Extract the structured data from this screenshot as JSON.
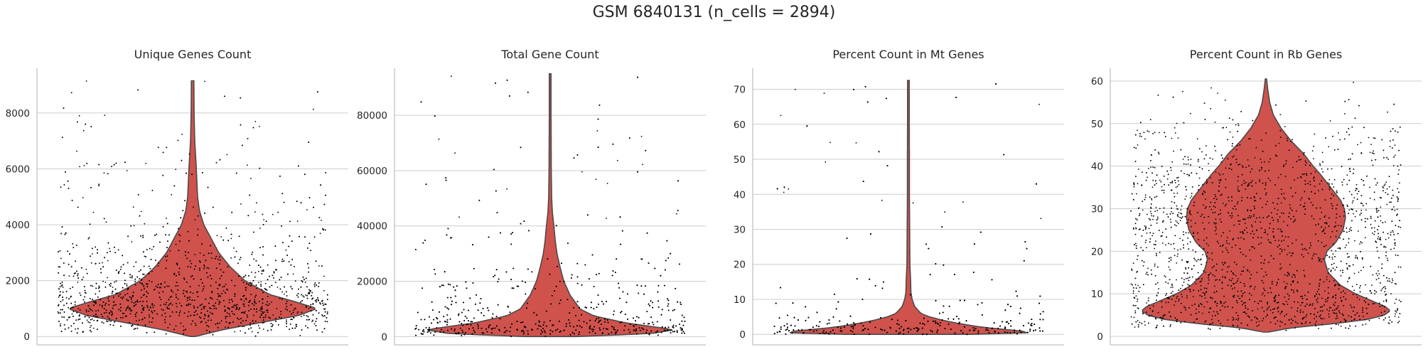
{
  "figure": {
    "title": "GSM 6840131 (n_cells = 2894)"
  },
  "chart_data": [
    {
      "type": "violin",
      "title": "Unique Genes Count",
      "xlabel": "",
      "ylabel": "",
      "ylim": [
        -300,
        9600
      ],
      "yticks": [
        0,
        2000,
        4000,
        6000,
        8000
      ],
      "grid": true,
      "color": "#d0524d",
      "data_max": 9150,
      "n_points": 2894,
      "density_profile": [
        [
          0,
          0.02
        ],
        [
          250,
          0.25
        ],
        [
          500,
          0.55
        ],
        [
          750,
          0.85
        ],
        [
          1000,
          1.0
        ],
        [
          1250,
          0.82
        ],
        [
          1500,
          0.62
        ],
        [
          2000,
          0.42
        ],
        [
          2500,
          0.3
        ],
        [
          3000,
          0.21
        ],
        [
          3500,
          0.15
        ],
        [
          4000,
          0.09
        ],
        [
          4500,
          0.055
        ],
        [
          5000,
          0.04
        ],
        [
          6000,
          0.03
        ],
        [
          7000,
          0.017
        ],
        [
          8000,
          0.012
        ],
        [
          9150,
          0.01
        ]
      ]
    },
    {
      "type": "violin",
      "title": "Total Gene Count",
      "xlabel": "",
      "ylabel": "",
      "ylim": [
        -3000,
        97000
      ],
      "yticks": [
        0,
        20000,
        40000,
        60000,
        80000
      ],
      "grid": true,
      "color": "#d0524d",
      "data_max": 95000,
      "n_points": 2894,
      "density_profile": [
        [
          0,
          0.2
        ],
        [
          1000,
          0.8
        ],
        [
          2500,
          1.0
        ],
        [
          5000,
          0.6
        ],
        [
          7500,
          0.35
        ],
        [
          10000,
          0.24
        ],
        [
          15000,
          0.16
        ],
        [
          20000,
          0.11
        ],
        [
          25000,
          0.08
        ],
        [
          30000,
          0.055
        ],
        [
          35000,
          0.04
        ],
        [
          40000,
          0.03
        ],
        [
          45000,
          0.018
        ],
        [
          50000,
          0.012
        ],
        [
          60000,
          0.009
        ],
        [
          70000,
          0.008
        ],
        [
          80000,
          0.007
        ],
        [
          95000,
          0.007
        ]
      ]
    },
    {
      "type": "violin",
      "title": "Percent Count in Mt Genes",
      "xlabel": "",
      "ylabel": "",
      "ylim": [
        -3,
        76
      ],
      "yticks": [
        0,
        10,
        20,
        30,
        40,
        50,
        60,
        70
      ],
      "grid": true,
      "color": "#d0524d",
      "data_max": 72.5,
      "n_points": 2894,
      "density_profile": [
        [
          0,
          0.5
        ],
        [
          0.5,
          1.0
        ],
        [
          1,
          0.9
        ],
        [
          2,
          0.6
        ],
        [
          3,
          0.42
        ],
        [
          4,
          0.28
        ],
        [
          5,
          0.17
        ],
        [
          6,
          0.1
        ],
        [
          8,
          0.05
        ],
        [
          10,
          0.03
        ],
        [
          12,
          0.02
        ],
        [
          15,
          0.018
        ],
        [
          20,
          0.012
        ],
        [
          30,
          0.01
        ],
        [
          40,
          0.008
        ],
        [
          50,
          0.008
        ],
        [
          60,
          0.007
        ],
        [
          72.5,
          0.007
        ]
      ]
    },
    {
      "type": "violin",
      "title": "Percent Count in Rb Genes",
      "xlabel": "",
      "ylabel": "",
      "ylim": [
        -2,
        63
      ],
      "yticks": [
        0,
        10,
        20,
        30,
        40,
        50,
        60
      ],
      "grid": true,
      "color": "#d0524d",
      "data_max": 60.5,
      "n_points": 2894,
      "density_profile": [
        [
          1,
          0.02
        ],
        [
          2,
          0.2
        ],
        [
          3,
          0.55
        ],
        [
          4,
          0.82
        ],
        [
          5,
          0.95
        ],
        [
          6,
          1.0
        ],
        [
          7,
          0.96
        ],
        [
          8,
          0.88
        ],
        [
          10,
          0.72
        ],
        [
          12,
          0.6
        ],
        [
          15,
          0.5
        ],
        [
          18,
          0.47
        ],
        [
          20,
          0.49
        ],
        [
          22,
          0.56
        ],
        [
          25,
          0.62
        ],
        [
          28,
          0.64
        ],
        [
          30,
          0.63
        ],
        [
          32,
          0.6
        ],
        [
          35,
          0.52
        ],
        [
          38,
          0.44
        ],
        [
          40,
          0.38
        ],
        [
          43,
          0.3
        ],
        [
          46,
          0.2
        ],
        [
          49,
          0.12
        ],
        [
          52,
          0.06
        ],
        [
          55,
          0.03
        ],
        [
          58,
          0.015
        ],
        [
          60.5,
          0.005
        ]
      ]
    }
  ]
}
